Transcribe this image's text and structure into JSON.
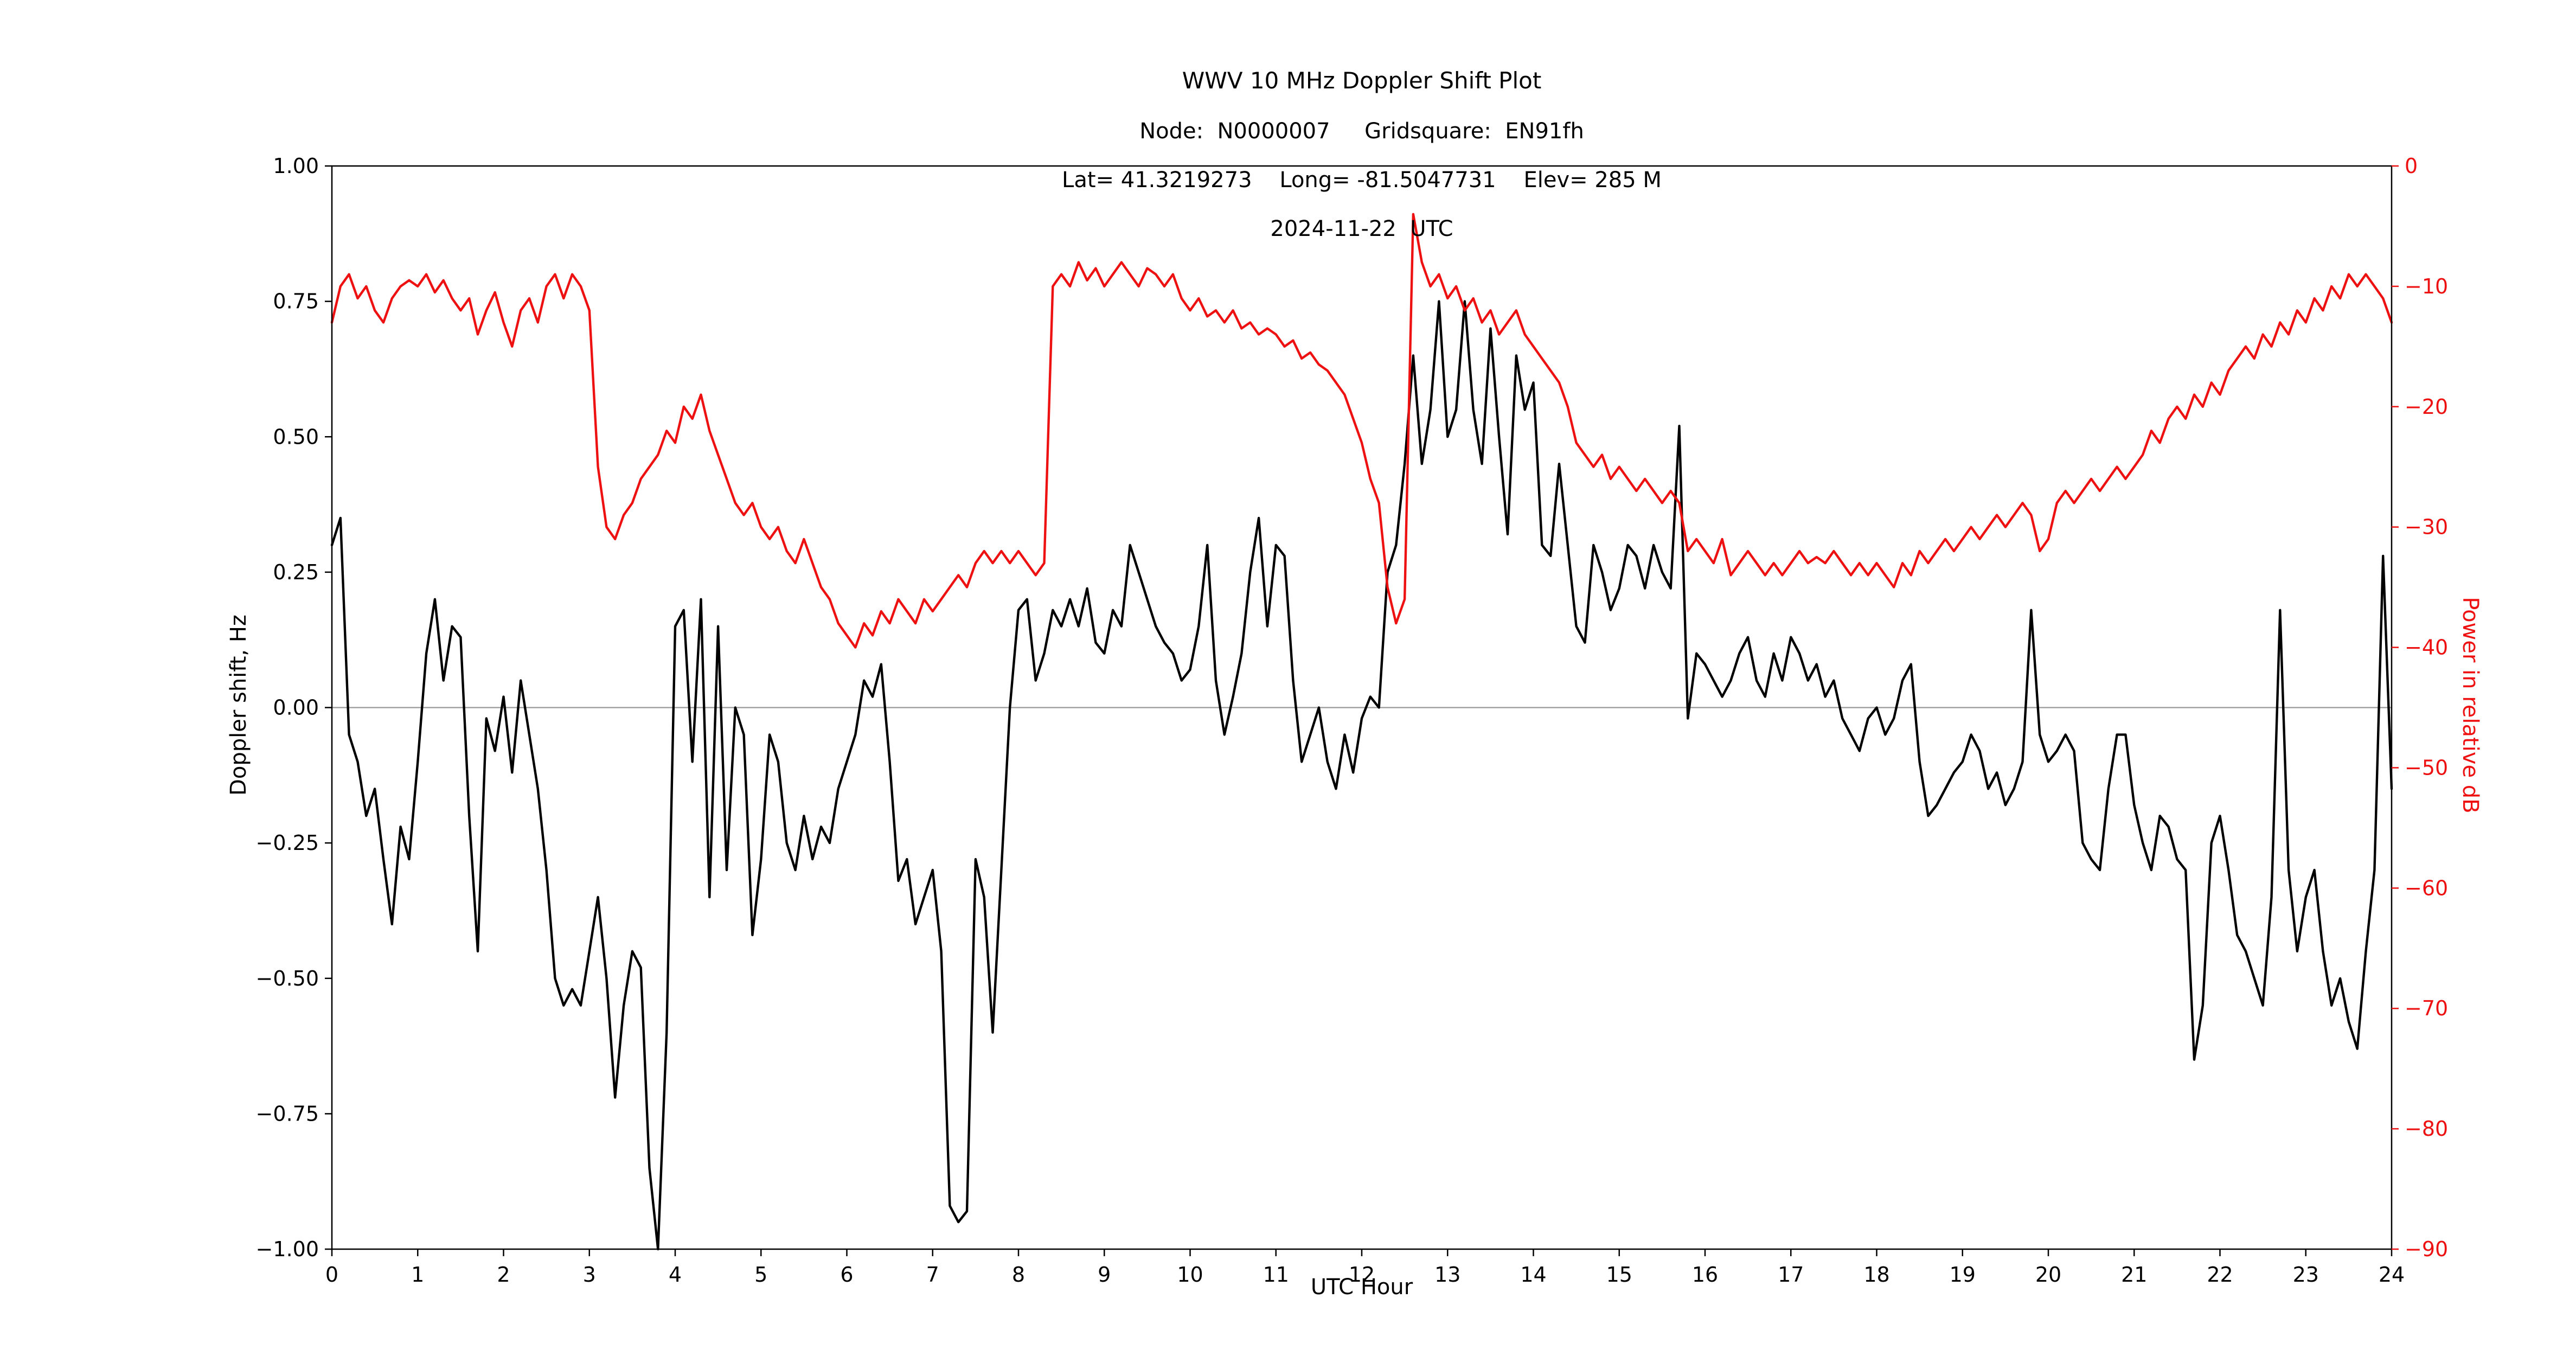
{
  "title": {
    "line1": "WWV 10 MHz Doppler Shift Plot",
    "line2": "Node:  N0000007     Gridsquare:  EN91fh",
    "line3": "Lat= 41.3219273    Long= -81.5047731    Elev= 285 M",
    "line4": "2024-11-22  UTC"
  },
  "chart_data": {
    "type": "line",
    "title": "WWV 10 MHz Doppler Shift Plot",
    "xlabel": "UTC Hour",
    "ylabel_left": "Doppler shift, Hz",
    "ylabel_right": "Power in relative dB",
    "x_range": [
      0,
      24
    ],
    "left_y_range": [
      -1.0,
      1.0
    ],
    "right_y_range": [
      -90,
      0
    ],
    "x_tick_values": [
      0,
      1,
      2,
      3,
      4,
      5,
      6,
      7,
      8,
      9,
      10,
      11,
      12,
      13,
      14,
      15,
      16,
      17,
      18,
      19,
      20,
      21,
      22,
      23,
      24
    ],
    "x_tick_labels": [
      "0",
      "1",
      "2",
      "3",
      "4",
      "5",
      "6",
      "7",
      "8",
      "9",
      "10",
      "11",
      "12",
      "13",
      "14",
      "15",
      "16",
      "17",
      "18",
      "19",
      "20",
      "21",
      "22",
      "23",
      "24"
    ],
    "left_y_tick_values": [
      1.0,
      0.75,
      0.5,
      0.25,
      0.0,
      -0.25,
      -0.5,
      -0.75,
      -1.0
    ],
    "left_y_tick_labels": [
      "1.00",
      "0.75",
      "0.50",
      "0.25",
      "0.00",
      "−0.25",
      "−0.50",
      "−0.75",
      "−1.00"
    ],
    "right_y_tick_values": [
      0,
      -10,
      -20,
      -30,
      -40,
      -50,
      -60,
      -70,
      -80,
      -90
    ],
    "right_y_tick_labels": [
      "0",
      "−10",
      "−20",
      "−30",
      "−40",
      "−50",
      "−60",
      "−70",
      "−80",
      "−90"
    ],
    "grid": "off",
    "legend": "none",
    "zero_reference_line": 0.0,
    "colors": {
      "doppler": "#000000",
      "power": "#ee1111",
      "zero_line": "#999999",
      "spine": "#000000"
    },
    "series": [
      {
        "name": "Doppler shift, Hz",
        "axis": "left",
        "color": "#000000",
        "x_start": 0,
        "x_step": 0.1,
        "values": [
          0.3,
          0.35,
          -0.05,
          -0.1,
          -0.2,
          -0.15,
          -0.28,
          -0.4,
          -0.22,
          -0.28,
          -0.1,
          0.1,
          0.2,
          0.05,
          0.15,
          0.13,
          -0.2,
          -0.45,
          -0.02,
          -0.08,
          0.02,
          -0.12,
          0.05,
          -0.05,
          -0.15,
          -0.3,
          -0.5,
          -0.55,
          -0.52,
          -0.55,
          -0.45,
          -0.35,
          -0.5,
          -0.72,
          -0.55,
          -0.45,
          -0.48,
          -0.85,
          -1.0,
          -0.6,
          0.15,
          0.18,
          -0.1,
          0.2,
          -0.35,
          0.15,
          -0.3,
          0.0,
          -0.05,
          -0.42,
          -0.28,
          -0.05,
          -0.1,
          -0.25,
          -0.3,
          -0.2,
          -0.28,
          -0.22,
          -0.25,
          -0.15,
          -0.1,
          -0.05,
          0.05,
          0.02,
          0.08,
          -0.1,
          -0.32,
          -0.28,
          -0.4,
          -0.35,
          -0.3,
          -0.45,
          -0.92,
          -0.95,
          -0.93,
          -0.28,
          -0.35,
          -0.6,
          -0.3,
          0.0,
          0.18,
          0.2,
          0.05,
          0.1,
          0.18,
          0.15,
          0.2,
          0.15,
          0.22,
          0.12,
          0.1,
          0.18,
          0.15,
          0.3,
          0.25,
          0.2,
          0.15,
          0.12,
          0.1,
          0.05,
          0.07,
          0.15,
          0.3,
          0.05,
          -0.05,
          0.02,
          0.1,
          0.25,
          0.35,
          0.15,
          0.3,
          0.28,
          0.05,
          -0.1,
          -0.05,
          0.0,
          -0.1,
          -0.15,
          -0.05,
          -0.12,
          -0.02,
          0.02,
          0.0,
          0.25,
          0.3,
          0.45,
          0.65,
          0.45,
          0.55,
          0.75,
          0.5,
          0.55,
          0.75,
          0.55,
          0.45,
          0.7,
          0.5,
          0.32,
          0.65,
          0.55,
          0.6,
          0.3,
          0.28,
          0.45,
          0.3,
          0.15,
          0.12,
          0.3,
          0.25,
          0.18,
          0.22,
          0.3,
          0.28,
          0.22,
          0.3,
          0.25,
          0.22,
          0.52,
          -0.02,
          0.1,
          0.08,
          0.05,
          0.02,
          0.05,
          0.1,
          0.13,
          0.05,
          0.02,
          0.1,
          0.05,
          0.13,
          0.1,
          0.05,
          0.08,
          0.02,
          0.05,
          -0.02,
          -0.05,
          -0.08,
          -0.02,
          0.0,
          -0.05,
          -0.02,
          0.05,
          0.08,
          -0.1,
          -0.2,
          -0.18,
          -0.15,
          -0.12,
          -0.1,
          -0.05,
          -0.08,
          -0.15,
          -0.12,
          -0.18,
          -0.15,
          -0.1,
          0.18,
          -0.05,
          -0.1,
          -0.08,
          -0.05,
          -0.08,
          -0.25,
          -0.28,
          -0.3,
          -0.15,
          -0.05,
          -0.05,
          -0.18,
          -0.25,
          -0.3,
          -0.2,
          -0.22,
          -0.28,
          -0.3,
          -0.65,
          -0.55,
          -0.25,
          -0.2,
          -0.3,
          -0.42,
          -0.45,
          -0.5,
          -0.55,
          -0.35,
          0.18,
          -0.3,
          -0.45,
          -0.35,
          -0.3,
          -0.45,
          -0.55,
          -0.5,
          -0.58,
          -0.63,
          -0.45,
          -0.3,
          0.28,
          -0.15
        ]
      },
      {
        "name": "Power in relative dB",
        "axis": "right",
        "color": "#ee1111",
        "x_start": 0,
        "x_step": 0.1,
        "values": [
          -13,
          -10,
          -9,
          -11,
          -10,
          -12,
          -13,
          -11,
          -10,
          -9.5,
          -10,
          -9,
          -10.5,
          -9.5,
          -11,
          -12,
          -11,
          -14,
          -12,
          -10.5,
          -13,
          -15,
          -12,
          -11,
          -13,
          -10,
          -9,
          -11,
          -9,
          -10,
          -12,
          -25,
          -30,
          -31,
          -29,
          -28,
          -26,
          -25,
          -24,
          -22,
          -23,
          -20,
          -21,
          -19,
          -22,
          -24,
          -26,
          -28,
          -29,
          -28,
          -30,
          -31,
          -30,
          -32,
          -33,
          -31,
          -33,
          -35,
          -36,
          -38,
          -39,
          -40,
          -38,
          -39,
          -37,
          -38,
          -36,
          -37,
          -38,
          -36,
          -37,
          -36,
          -35,
          -34,
          -35,
          -33,
          -32,
          -33,
          -32,
          -33,
          -32,
          -33,
          -34,
          -33,
          -10,
          -9,
          -10,
          -8,
          -9.5,
          -8.5,
          -10,
          -9,
          -8,
          -9,
          -10,
          -8.5,
          -9,
          -10,
          -9,
          -11,
          -12,
          -11,
          -12.5,
          -12,
          -13,
          -12,
          -13.5,
          -13,
          -14,
          -13.5,
          -14,
          -15,
          -14.5,
          -16,
          -15.5,
          -16.5,
          -17,
          -18,
          -19,
          -21,
          -23,
          -26,
          -28,
          -35,
          -38,
          -36,
          -4,
          -8,
          -10,
          -9,
          -11,
          -10,
          -12,
          -11,
          -13,
          -12,
          -14,
          -13,
          -12,
          -14,
          -15,
          -16,
          -17,
          -18,
          -20,
          -23,
          -24,
          -25,
          -24,
          -26,
          -25,
          -26,
          -27,
          -26,
          -27,
          -28,
          -27,
          -28,
          -32,
          -31,
          -32,
          -33,
          -31,
          -34,
          -33,
          -32,
          -33,
          -34,
          -33,
          -34,
          -33,
          -32,
          -33,
          -32.5,
          -33,
          -32,
          -33,
          -34,
          -33,
          -34,
          -33,
          -34,
          -35,
          -33,
          -34,
          -32,
          -33,
          -32,
          -31,
          -32,
          -31,
          -30,
          -31,
          -30,
          -29,
          -30,
          -29,
          -28,
          -29,
          -32,
          -31,
          -28,
          -27,
          -28,
          -27,
          -26,
          -27,
          -26,
          -25,
          -26,
          -25,
          -24,
          -22,
          -23,
          -21,
          -20,
          -21,
          -19,
          -20,
          -18,
          -19,
          -17,
          -16,
          -15,
          -16,
          -14,
          -15,
          -13,
          -14,
          -12,
          -13,
          -11,
          -12,
          -10,
          -11,
          -9,
          -10,
          -9,
          -10,
          -11,
          -13
        ]
      }
    ]
  }
}
